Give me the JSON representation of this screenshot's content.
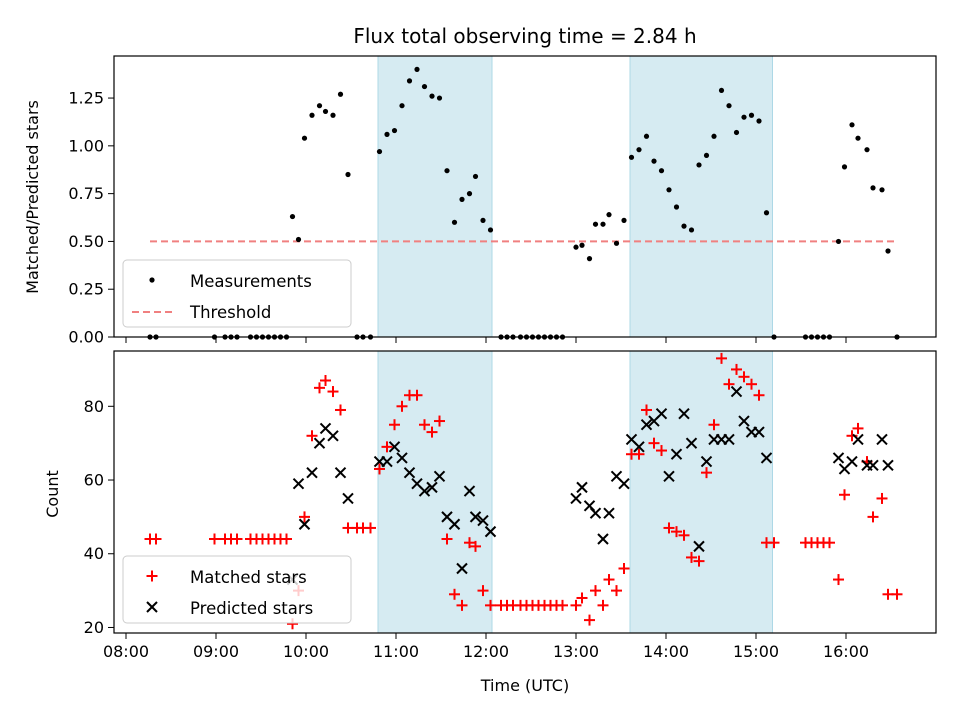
{
  "chart_data": [
    {
      "type": "scatter",
      "title": "Flux total observing time = 2.84 h",
      "xlabel": "",
      "ylabel": "Matched/Predicted stars",
      "xlim": [
        "07:52",
        "17:00"
      ],
      "ylim": [
        0,
        1.47
      ],
      "yticks": [
        0.0,
        0.25,
        0.5,
        0.75,
        1.0,
        1.25
      ],
      "ytick_labels": [
        "0.00",
        "0.25",
        "0.50",
        "0.75",
        "1.00",
        "1.25"
      ],
      "legend": {
        "position": "lower-left",
        "entries": [
          "Measurements",
          "Threshold"
        ]
      },
      "shaded_intervals": [
        [
          "10:48",
          "12:04"
        ],
        [
          "13:36",
          "15:11"
        ]
      ],
      "threshold": {
        "name": "Threshold",
        "value": 0.5,
        "x_range": [
          "08:16",
          "16:34"
        ],
        "color": "#f08080",
        "style": "dashed"
      },
      "series": [
        {
          "name": "Measurements",
          "color": "#000000",
          "marker": "dot",
          "points": [
            [
              "08:16",
              0.0
            ],
            [
              "08:20",
              0.0
            ],
            [
              "08:59",
              0.0
            ],
            [
              "09:06",
              0.0
            ],
            [
              "09:10",
              0.0
            ],
            [
              "09:14",
              0.0
            ],
            [
              "09:23",
              0.0
            ],
            [
              "09:27",
              0.0
            ],
            [
              "09:31",
              0.0
            ],
            [
              "09:35",
              0.0
            ],
            [
              "09:39",
              0.0
            ],
            [
              "09:43",
              0.0
            ],
            [
              "09:47",
              0.0
            ],
            [
              "09:51",
              0.63
            ],
            [
              "09:55",
              0.51
            ],
            [
              "09:59",
              1.04
            ],
            [
              "10:04",
              1.16
            ],
            [
              "10:09",
              1.21
            ],
            [
              "10:13",
              1.18
            ],
            [
              "10:18",
              1.16
            ],
            [
              "10:23",
              1.27
            ],
            [
              "10:28",
              0.85
            ],
            [
              "10:34",
              0.0
            ],
            [
              "10:38",
              0.0
            ],
            [
              "10:43",
              0.0
            ],
            [
              "10:49",
              0.97
            ],
            [
              "10:54",
              1.06
            ],
            [
              "10:59",
              1.08
            ],
            [
              "11:04",
              1.21
            ],
            [
              "11:09",
              1.34
            ],
            [
              "11:14",
              1.4
            ],
            [
              "11:19",
              1.31
            ],
            [
              "11:24",
              1.26
            ],
            [
              "11:29",
              1.25
            ],
            [
              "11:34",
              0.87
            ],
            [
              "11:39",
              0.6
            ],
            [
              "11:44",
              0.72
            ],
            [
              "11:49",
              0.75
            ],
            [
              "11:53",
              0.84
            ],
            [
              "11:58",
              0.61
            ],
            [
              "12:03",
              0.56
            ],
            [
              "12:10",
              0.0
            ],
            [
              "12:14",
              0.0
            ],
            [
              "12:18",
              0.0
            ],
            [
              "12:23",
              0.0
            ],
            [
              "12:27",
              0.0
            ],
            [
              "12:31",
              0.0
            ],
            [
              "12:35",
              0.0
            ],
            [
              "12:39",
              0.0
            ],
            [
              "12:43",
              0.0
            ],
            [
              "12:47",
              0.0
            ],
            [
              "12:51",
              0.0
            ],
            [
              "13:00",
              0.47
            ],
            [
              "13:04",
              0.48
            ],
            [
              "13:09",
              0.41
            ],
            [
              "13:13",
              0.59
            ],
            [
              "13:18",
              0.59
            ],
            [
              "13:22",
              0.64
            ],
            [
              "13:27",
              0.49
            ],
            [
              "13:32",
              0.61
            ],
            [
              "13:37",
              0.94
            ],
            [
              "13:42",
              0.98
            ],
            [
              "13:47",
              1.05
            ],
            [
              "13:52",
              0.92
            ],
            [
              "13:57",
              0.87
            ],
            [
              "14:02",
              0.77
            ],
            [
              "14:07",
              0.68
            ],
            [
              "14:12",
              0.58
            ],
            [
              "14:17",
              0.56
            ],
            [
              "14:22",
              0.9
            ],
            [
              "14:27",
              0.95
            ],
            [
              "14:32",
              1.05
            ],
            [
              "14:37",
              1.29
            ],
            [
              "14:42",
              1.21
            ],
            [
              "14:47",
              1.07
            ],
            [
              "14:52",
              1.15
            ],
            [
              "14:57",
              1.16
            ],
            [
              "15:02",
              1.13
            ],
            [
              "15:07",
              0.65
            ],
            [
              "15:12",
              0.0
            ],
            [
              "15:33",
              0.0
            ],
            [
              "15:37",
              0.0
            ],
            [
              "15:41",
              0.0
            ],
            [
              "15:45",
              0.0
            ],
            [
              "15:49",
              0.0
            ],
            [
              "15:55",
              0.5
            ],
            [
              "15:59",
              0.89
            ],
            [
              "16:04",
              1.11
            ],
            [
              "16:08",
              1.04
            ],
            [
              "16:14",
              0.98
            ],
            [
              "16:18",
              0.78
            ],
            [
              "16:24",
              0.77
            ],
            [
              "16:28",
              0.45
            ],
            [
              "16:34",
              0.0
            ]
          ]
        }
      ]
    },
    {
      "type": "scatter",
      "title": "",
      "xlabel": "Time (UTC)",
      "ylabel": "Count",
      "xlim": [
        "07:52",
        "17:00"
      ],
      "ylim": [
        18.5,
        95
      ],
      "xticks": [
        "08:00",
        "09:00",
        "10:00",
        "11:00",
        "12:00",
        "13:00",
        "14:00",
        "15:00",
        "16:00"
      ],
      "yticks": [
        20,
        40,
        60,
        80
      ],
      "legend": {
        "position": "lower-left",
        "entries": [
          "Matched stars",
          "Predicted stars"
        ]
      },
      "shaded_intervals": [
        [
          "10:48",
          "12:04"
        ],
        [
          "13:36",
          "15:11"
        ]
      ],
      "series": [
        {
          "name": "Matched stars",
          "color": "#ff0000",
          "marker": "plus",
          "points": [
            [
              "08:16",
              44
            ],
            [
              "08:20",
              44
            ],
            [
              "08:59",
              44
            ],
            [
              "09:06",
              44
            ],
            [
              "09:10",
              44
            ],
            [
              "09:14",
              44
            ],
            [
              "09:23",
              44
            ],
            [
              "09:27",
              44
            ],
            [
              "09:31",
              44
            ],
            [
              "09:35",
              44
            ],
            [
              "09:39",
              44
            ],
            [
              "09:43",
              44
            ],
            [
              "09:47",
              44
            ],
            [
              "09:51",
              21
            ],
            [
              "09:55",
              30
            ],
            [
              "09:59",
              50
            ],
            [
              "10:04",
              72
            ],
            [
              "10:09",
              85
            ],
            [
              "10:13",
              87
            ],
            [
              "10:18",
              84
            ],
            [
              "10:23",
              79
            ],
            [
              "10:28",
              47
            ],
            [
              "10:34",
              47
            ],
            [
              "10:38",
              47
            ],
            [
              "10:43",
              47
            ],
            [
              "10:49",
              63
            ],
            [
              "10:54",
              69
            ],
            [
              "10:59",
              75
            ],
            [
              "11:04",
              80
            ],
            [
              "11:09",
              83
            ],
            [
              "11:14",
              83
            ],
            [
              "11:19",
              75
            ],
            [
              "11:24",
              73
            ],
            [
              "11:29",
              76
            ],
            [
              "11:34",
              44
            ],
            [
              "11:39",
              29
            ],
            [
              "11:44",
              26
            ],
            [
              "11:49",
              43
            ],
            [
              "11:53",
              42
            ],
            [
              "11:58",
              30
            ],
            [
              "12:03",
              26
            ],
            [
              "12:10",
              26
            ],
            [
              "12:14",
              26
            ],
            [
              "12:18",
              26
            ],
            [
              "12:23",
              26
            ],
            [
              "12:27",
              26
            ],
            [
              "12:31",
              26
            ],
            [
              "12:35",
              26
            ],
            [
              "12:39",
              26
            ],
            [
              "12:43",
              26
            ],
            [
              "12:47",
              26
            ],
            [
              "12:51",
              26
            ],
            [
              "13:00",
              26
            ],
            [
              "13:04",
              28
            ],
            [
              "13:09",
              22
            ],
            [
              "13:13",
              30
            ],
            [
              "13:18",
              26
            ],
            [
              "13:22",
              33
            ],
            [
              "13:27",
              30
            ],
            [
              "13:32",
              36
            ],
            [
              "13:37",
              67
            ],
            [
              "13:42",
              67
            ],
            [
              "13:47",
              79
            ],
            [
              "13:52",
              70
            ],
            [
              "13:57",
              68
            ],
            [
              "14:02",
              47
            ],
            [
              "14:07",
              46
            ],
            [
              "14:12",
              45
            ],
            [
              "14:17",
              39
            ],
            [
              "14:22",
              38
            ],
            [
              "14:27",
              62
            ],
            [
              "14:32",
              75
            ],
            [
              "14:37",
              93
            ],
            [
              "14:42",
              86
            ],
            [
              "14:47",
              90
            ],
            [
              "14:52",
              88
            ],
            [
              "14:57",
              86
            ],
            [
              "15:02",
              83
            ],
            [
              "15:07",
              43
            ],
            [
              "15:12",
              43
            ],
            [
              "15:33",
              43
            ],
            [
              "15:37",
              43
            ],
            [
              "15:41",
              43
            ],
            [
              "15:45",
              43
            ],
            [
              "15:49",
              43
            ],
            [
              "15:55",
              33
            ],
            [
              "15:59",
              56
            ],
            [
              "16:04",
              72
            ],
            [
              "16:08",
              74
            ],
            [
              "16:14",
              65
            ],
            [
              "16:18",
              50
            ],
            [
              "16:24",
              55
            ],
            [
              "16:28",
              29
            ],
            [
              "16:34",
              29
            ]
          ]
        },
        {
          "name": "Predicted stars",
          "color": "#000000",
          "marker": "x",
          "points": [
            [
              "09:51",
              33
            ],
            [
              "09:55",
              59
            ],
            [
              "09:59",
              48
            ],
            [
              "10:04",
              62
            ],
            [
              "10:09",
              70
            ],
            [
              "10:13",
              74
            ],
            [
              "10:18",
              72
            ],
            [
              "10:23",
              62
            ],
            [
              "10:28",
              55
            ],
            [
              "10:49",
              65
            ],
            [
              "10:54",
              65
            ],
            [
              "10:59",
              69
            ],
            [
              "11:04",
              66
            ],
            [
              "11:09",
              62
            ],
            [
              "11:14",
              59
            ],
            [
              "11:19",
              57
            ],
            [
              "11:24",
              58
            ],
            [
              "11:29",
              61
            ],
            [
              "11:34",
              50
            ],
            [
              "11:39",
              48
            ],
            [
              "11:44",
              36
            ],
            [
              "11:49",
              57
            ],
            [
              "11:53",
              50
            ],
            [
              "11:58",
              49
            ],
            [
              "12:03",
              46
            ],
            [
              "13:00",
              55
            ],
            [
              "13:04",
              58
            ],
            [
              "13:09",
              53
            ],
            [
              "13:13",
              51
            ],
            [
              "13:18",
              44
            ],
            [
              "13:22",
              51
            ],
            [
              "13:27",
              61
            ],
            [
              "13:32",
              59
            ],
            [
              "13:37",
              71
            ],
            [
              "13:42",
              69
            ],
            [
              "13:47",
              75
            ],
            [
              "13:52",
              76
            ],
            [
              "13:57",
              78
            ],
            [
              "14:02",
              61
            ],
            [
              "14:07",
              67
            ],
            [
              "14:12",
              78
            ],
            [
              "14:17",
              70
            ],
            [
              "14:22",
              42
            ],
            [
              "14:27",
              65
            ],
            [
              "14:32",
              71
            ],
            [
              "14:37",
              71
            ],
            [
              "14:42",
              71
            ],
            [
              "14:47",
              84
            ],
            [
              "14:52",
              76
            ],
            [
              "14:57",
              73
            ],
            [
              "15:02",
              73
            ],
            [
              "15:07",
              66
            ],
            [
              "15:55",
              66
            ],
            [
              "15:59",
              63
            ],
            [
              "16:04",
              65
            ],
            [
              "16:08",
              71
            ],
            [
              "16:14",
              64
            ],
            [
              "16:18",
              64
            ],
            [
              "16:24",
              71
            ],
            [
              "16:28",
              64
            ]
          ]
        }
      ]
    }
  ]
}
